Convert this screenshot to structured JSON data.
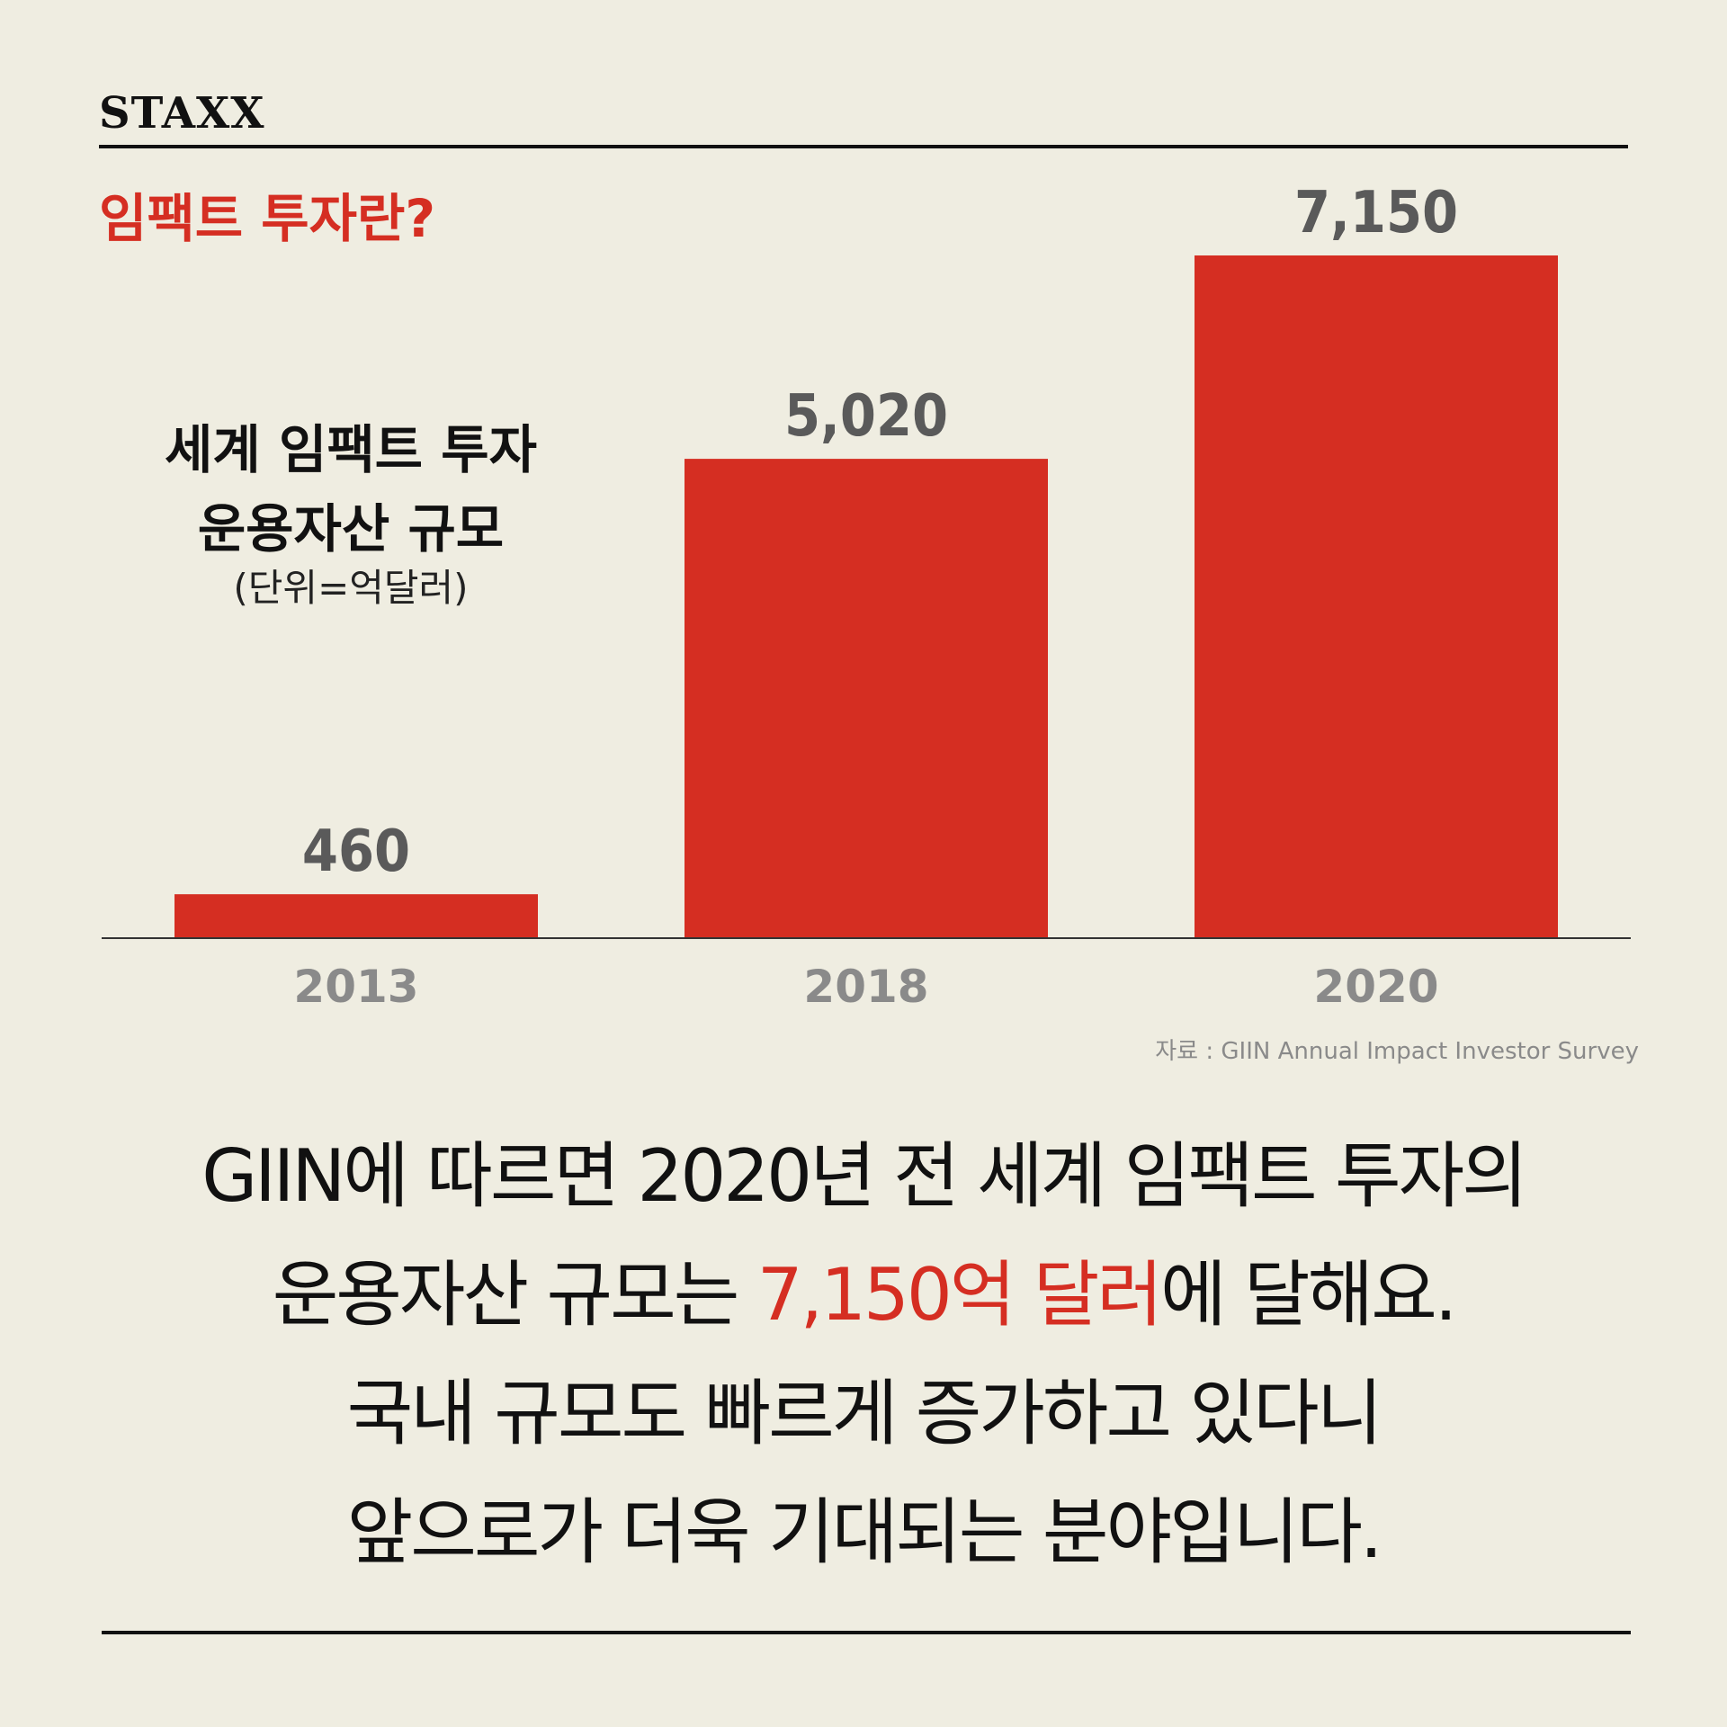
{
  "brand": "STAXX",
  "subtitle": "임팩트 투자란?",
  "chart_title": {
    "line1": "세계 임팩트 투자",
    "line2": "운용자산 규모",
    "unit": "(단위=억달러)"
  },
  "source": "자료 : GIIN Annual Impact Investor Survey",
  "body": {
    "line1": "GIIN에 따르면 2020년 전 세계 임팩트 투자의",
    "line2_pre": "운용자산 규모는 ",
    "line2_highlight": "7,150억 달러",
    "line2_post": "에 달해요.",
    "line3": "국내 규모도 빠르게 증가하고 있다니",
    "line4": "앞으로가 더욱 기대되는 분야입니다."
  },
  "colors": {
    "background": "#efede1",
    "bar": "#d52e22",
    "value_label": "#5a5a5a",
    "category_label": "#8a8a8a",
    "accent": "#d52e22"
  },
  "chart_data": {
    "type": "bar",
    "categories": [
      "2013",
      "2018",
      "2020"
    ],
    "values": [
      460,
      5020,
      7150
    ],
    "value_labels": [
      "460",
      "5,020",
      "7,150"
    ],
    "ylim": [
      0,
      7150
    ],
    "grid": false,
    "legend": "none"
  }
}
